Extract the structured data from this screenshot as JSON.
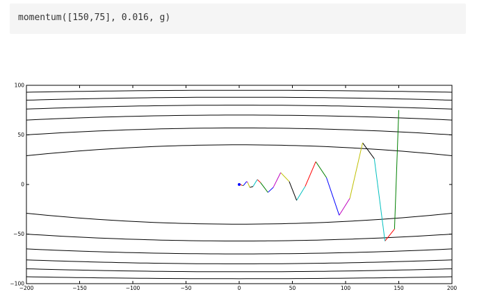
{
  "notebook": {
    "code_input": "momentum([150,75], 0.016, g)"
  },
  "chart_data": {
    "type": "line",
    "title": "",
    "xlabel": "",
    "ylabel": "",
    "xlim": [
      -200,
      200
    ],
    "ylim": [
      -100,
      100
    ],
    "x_ticks": [
      -200,
      -150,
      -100,
      -50,
      0,
      50,
      100,
      150,
      200
    ],
    "y_ticks": [
      -100,
      -50,
      0,
      50,
      100
    ],
    "x_tick_labels": [
      "−200",
      "−150",
      "−100",
      "−50",
      "0",
      "50",
      "100",
      "150",
      "200"
    ],
    "y_tick_labels": [
      "−100",
      "−50",
      "0",
      "50",
      "100"
    ],
    "grid": false,
    "contours": {
      "color": "#000000",
      "description_note": "Horizontal level curves of the objective, bowing away from y=0",
      "upper_levels": [
        {
          "center": 40,
          "edge": 29
        },
        {
          "center": 57,
          "edge": 50
        },
        {
          "center": 70,
          "edge": 65
        },
        {
          "center": 80,
          "edge": 76
        },
        {
          "center": 88,
          "edge": 85
        },
        {
          "center": 95,
          "edge": 93
        }
      ],
      "lower_levels": [
        {
          "center": -40,
          "edge": -29
        },
        {
          "center": -57,
          "edge": -50
        },
        {
          "center": -70,
          "edge": -65
        },
        {
          "center": -80,
          "edge": -76
        },
        {
          "center": -88,
          "edge": -85
        },
        {
          "center": -95,
          "edge": -93
        }
      ]
    },
    "path_colors": [
      "#008000",
      "#ff0000",
      "#00bfbf",
      "#000000",
      "#bfbf00",
      "#bf00bf",
      "#0000ff"
    ],
    "path": [
      [
        150,
        75
      ],
      [
        146,
        -45
      ],
      [
        137,
        -57
      ],
      [
        127,
        26
      ],
      [
        116,
        42
      ],
      [
        104,
        -14
      ],
      [
        94,
        -31
      ],
      [
        82,
        7
      ],
      [
        72,
        23
      ],
      [
        62,
        -2
      ],
      [
        54,
        -16
      ],
      [
        47,
        3
      ],
      [
        39,
        12
      ],
      [
        32,
        -3
      ],
      [
        27,
        -8
      ],
      [
        20,
        2
      ],
      [
        17,
        5
      ],
      [
        13,
        -2
      ],
      [
        10,
        -3
      ],
      [
        8,
        2
      ],
      [
        7,
        3
      ],
      [
        4,
        -1
      ],
      [
        3,
        -1
      ],
      [
        1,
        0
      ],
      [
        0,
        0
      ]
    ],
    "endpoint_marker": {
      "x": 0,
      "y": 0,
      "color": "#0000ff"
    }
  }
}
